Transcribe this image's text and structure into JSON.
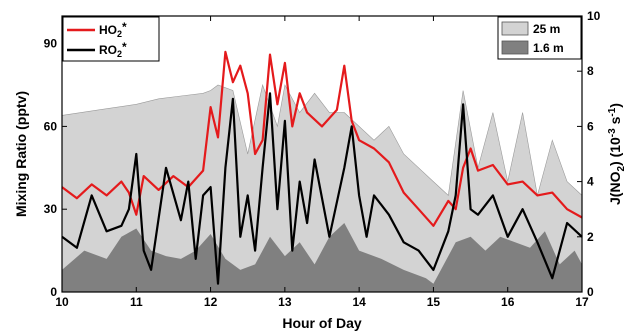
{
  "chart_data": {
    "type": "line",
    "title": "",
    "xlabel": "Hour of Day",
    "ylabel_left": "Mixing Ratio (pptv)",
    "ylabel_right_parts": [
      "J(NO",
      "2",
      ") (10",
      "-3",
      " s",
      "-1",
      ")"
    ],
    "xlim": [
      10,
      17
    ],
    "ylim_left": [
      0,
      100
    ],
    "ylim_right": [
      0,
      10
    ],
    "x_ticks": [
      "10",
      "11",
      "12",
      "13",
      "14",
      "15",
      "16",
      "17"
    ],
    "y_ticks_left": [
      "0",
      "30",
      "60",
      "90"
    ],
    "y_ticks_right": [
      "0",
      "2",
      "4",
      "6",
      "8",
      "10"
    ],
    "grid": false,
    "legend_left": {
      "placement": "top-left",
      "entries": [
        {
          "label": "HO",
          "sub": "2",
          "sup": "*",
          "color": "#e41a1c"
        },
        {
          "label": "RO",
          "sub": "2",
          "sup": "*",
          "color": "#000000"
        }
      ]
    },
    "legend_right": {
      "placement": "top-right",
      "entries": [
        {
          "label": "25 m",
          "color": "#d3d3d3"
        },
        {
          "label": "1.6 m",
          "color": "#808080"
        }
      ]
    },
    "series": [
      {
        "name": "HO2*",
        "axis": "left",
        "color": "#e41a1c",
        "x": [
          10.0,
          10.2,
          10.4,
          10.6,
          10.8,
          10.9,
          11.0,
          11.1,
          11.3,
          11.5,
          11.7,
          11.9,
          12.0,
          12.1,
          12.2,
          12.3,
          12.4,
          12.5,
          12.6,
          12.7,
          12.8,
          12.9,
          13.0,
          13.1,
          13.2,
          13.3,
          13.5,
          13.7,
          13.8,
          13.9,
          14.0,
          14.2,
          14.4,
          14.6,
          14.8,
          15.0,
          15.2,
          15.3,
          15.4,
          15.5,
          15.6,
          15.8,
          16.0,
          16.2,
          16.4,
          16.6,
          16.8,
          17.0
        ],
        "y": [
          38,
          34,
          39,
          35,
          40,
          36,
          28,
          42,
          37,
          42,
          38,
          44,
          67,
          56,
          87,
          76,
          82,
          72,
          50,
          55,
          86,
          68,
          83,
          60,
          72,
          65,
          60,
          66,
          82,
          62,
          55,
          52,
          47,
          36,
          30,
          24,
          33,
          30,
          45,
          52,
          44,
          46,
          39,
          40,
          35,
          36,
          30,
          27
        ]
      },
      {
        "name": "RO2*",
        "axis": "left",
        "color": "#000000",
        "x": [
          10.0,
          10.2,
          10.4,
          10.6,
          10.8,
          10.9,
          11.0,
          11.1,
          11.2,
          11.4,
          11.6,
          11.7,
          11.8,
          11.9,
          12.0,
          12.1,
          12.2,
          12.3,
          12.4,
          12.5,
          12.6,
          12.7,
          12.8,
          12.9,
          13.0,
          13.1,
          13.2,
          13.3,
          13.4,
          13.6,
          13.8,
          13.9,
          14.0,
          14.1,
          14.2,
          14.4,
          14.6,
          14.8,
          15.0,
          15.2,
          15.3,
          15.4,
          15.5,
          15.6,
          15.8,
          16.0,
          16.2,
          16.4,
          16.6,
          16.8,
          17.0
        ],
        "y": [
          20,
          16,
          35,
          22,
          24,
          30,
          50,
          15,
          8,
          45,
          26,
          40,
          12,
          35,
          38,
          3,
          45,
          70,
          20,
          35,
          15,
          45,
          72,
          30,
          62,
          15,
          40,
          25,
          48,
          20,
          45,
          60,
          35,
          20,
          35,
          28,
          18,
          15,
          8,
          22,
          35,
          68,
          30,
          28,
          35,
          20,
          30,
          18,
          5,
          25,
          20
        ]
      },
      {
        "name": "25 m",
        "axis": "right",
        "color": "#d3d3d3",
        "x": [
          10.0,
          10.5,
          11.0,
          11.3,
          11.6,
          11.9,
          12.0,
          12.1,
          12.3,
          12.5,
          12.7,
          12.9,
          13.0,
          13.2,
          13.4,
          13.6,
          13.8,
          14.0,
          14.2,
          14.4,
          14.6,
          14.8,
          15.0,
          15.2,
          15.4,
          15.6,
          15.8,
          16.0,
          16.2,
          16.4,
          16.6,
          16.8,
          17.0
        ],
        "y": [
          6.4,
          6.6,
          6.8,
          7.0,
          7.1,
          7.2,
          7.3,
          7.5,
          7.3,
          5.0,
          7.5,
          6.0,
          7.5,
          6.5,
          7.2,
          6.5,
          6.5,
          6.0,
          5.5,
          6.0,
          5.0,
          4.5,
          4.0,
          3.5,
          7.3,
          4.5,
          6.5,
          4.0,
          6.5,
          3.5,
          5.5,
          4.0,
          3.5
        ]
      },
      {
        "name": "1.6 m",
        "axis": "right",
        "color": "#808080",
        "x": [
          10.0,
          10.3,
          10.6,
          10.8,
          11.0,
          11.2,
          11.4,
          11.6,
          11.8,
          12.0,
          12.2,
          12.4,
          12.6,
          12.8,
          13.0,
          13.2,
          13.4,
          13.6,
          13.8,
          14.0,
          14.3,
          14.6,
          14.9,
          15.0,
          15.1,
          15.3,
          15.5,
          15.7,
          15.9,
          16.1,
          16.3,
          16.5,
          16.7,
          16.9,
          17.0
        ],
        "y": [
          0.8,
          1.5,
          1.2,
          2.0,
          2.3,
          1.5,
          1.3,
          1.2,
          1.5,
          2.1,
          1.2,
          0.8,
          1.0,
          2.0,
          1.3,
          1.8,
          1.0,
          2.0,
          2.5,
          1.5,
          1.2,
          0.8,
          0.5,
          0.3,
          0.8,
          1.8,
          2.0,
          1.5,
          2.0,
          1.8,
          1.6,
          2.2,
          1.0,
          1.5,
          1.0
        ]
      }
    ]
  }
}
